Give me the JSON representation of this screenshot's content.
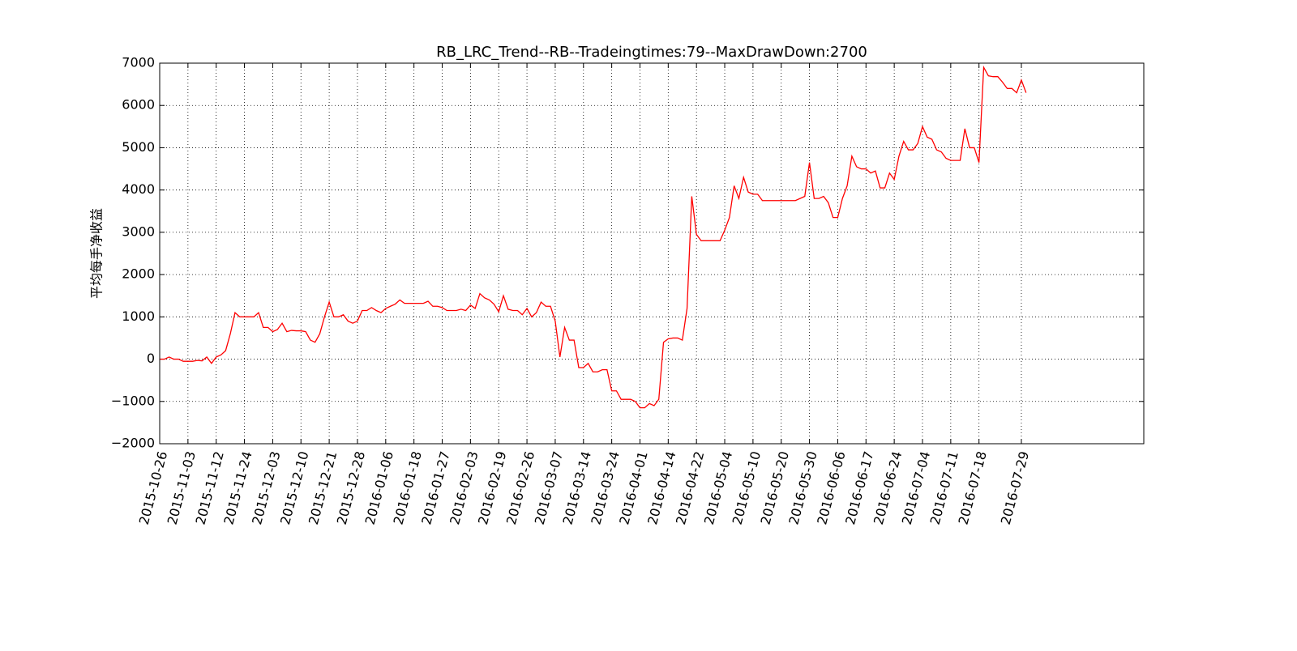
{
  "chart_data": {
    "type": "line",
    "title": "RB_LRC_Trend--RB--Tradeingtimes:79--MaxDrawDown:2700",
    "ylabel": "平均每手净收益",
    "series": [
      {
        "color": "#ff0000",
        "values": [
          0,
          0,
          50,
          0,
          0,
          -50,
          -50,
          -50,
          -30,
          -40,
          50,
          -100,
          50,
          100,
          200,
          600,
          1100,
          1000,
          1000,
          1000,
          1000,
          1100,
          750,
          750,
          650,
          700,
          850,
          650,
          680,
          670,
          670,
          650,
          450,
          400,
          600,
          1000,
          1350,
          1000,
          1000,
          1050,
          900,
          850,
          900,
          1150,
          1150,
          1220,
          1150,
          1100,
          1200,
          1250,
          1300,
          1400,
          1320,
          1320,
          1320,
          1320,
          1320,
          1370,
          1250,
          1250,
          1220,
          1150,
          1150,
          1150,
          1180,
          1150,
          1280,
          1200,
          1550,
          1450,
          1400,
          1300,
          1120,
          1500,
          1180,
          1150,
          1150,
          1050,
          1200,
          1000,
          1100,
          1350,
          1250,
          1250,
          900,
          50,
          750,
          450,
          450,
          -200,
          -200,
          -100,
          -300,
          -300,
          -250,
          -250,
          -750,
          -750,
          -950,
          -950,
          -950,
          -1000,
          -1150,
          -1150,
          -1050,
          -1100,
          -950,
          400,
          480,
          500,
          500,
          450,
          1200,
          3850,
          2950,
          2800,
          2800,
          2800,
          2800,
          2800,
          3050,
          3350,
          4100,
          3800,
          4300,
          3950,
          3900,
          3900,
          3750,
          3750,
          3750,
          3750,
          3750,
          3750,
          3750,
          3750,
          3800,
          3850,
          4650,
          3800,
          3800,
          3850,
          3700,
          3350,
          3350,
          3800,
          4100,
          4800,
          4550,
          4500,
          4500,
          4400,
          4450,
          4050,
          4050,
          4400,
          4250,
          4800,
          5150,
          4950,
          4950,
          5100,
          5500,
          5250,
          5200,
          4950,
          4900,
          4750,
          4700,
          4700,
          4700,
          5450,
          5000,
          5000,
          4650,
          6900,
          6700,
          6680,
          6680,
          6550,
          6400,
          6400,
          6300,
          6600,
          6300
        ]
      }
    ],
    "xlim": [
      0,
      209
    ],
    "xticks": [
      {
        "value": 0,
        "label": "2015-10-26"
      },
      {
        "value": 6,
        "label": "2015-11-03"
      },
      {
        "value": 12,
        "label": "2015-11-12"
      },
      {
        "value": 18,
        "label": "2015-11-24"
      },
      {
        "value": 24,
        "label": "2015-12-03"
      },
      {
        "value": 30,
        "label": "2015-12-10"
      },
      {
        "value": 36,
        "label": "2015-12-21"
      },
      {
        "value": 42,
        "label": "2015-12-28"
      },
      {
        "value": 48,
        "label": "2016-01-06"
      },
      {
        "value": 54,
        "label": "2016-01-18"
      },
      {
        "value": 60,
        "label": "2016-01-27"
      },
      {
        "value": 66,
        "label": "2016-02-03"
      },
      {
        "value": 72,
        "label": "2016-02-19"
      },
      {
        "value": 78,
        "label": "2016-02-26"
      },
      {
        "value": 84,
        "label": "2016-03-07"
      },
      {
        "value": 90,
        "label": "2016-03-14"
      },
      {
        "value": 96,
        "label": "2016-03-24"
      },
      {
        "value": 102,
        "label": "2016-04-01"
      },
      {
        "value": 108,
        "label": "2016-04-14"
      },
      {
        "value": 114,
        "label": "2016-04-22"
      },
      {
        "value": 120,
        "label": "2016-05-04"
      },
      {
        "value": 126,
        "label": "2016-05-10"
      },
      {
        "value": 132,
        "label": "2016-05-20"
      },
      {
        "value": 138,
        "label": "2016-05-30"
      },
      {
        "value": 144,
        "label": "2016-06-06"
      },
      {
        "value": 150,
        "label": "2016-06-17"
      },
      {
        "value": 156,
        "label": "2016-06-24"
      },
      {
        "value": 162,
        "label": "2016-07-04"
      },
      {
        "value": 168,
        "label": "2016-07-11"
      },
      {
        "value": 174,
        "label": "2016-07-18"
      },
      {
        "value": 183,
        "label": "2016-07-29"
      }
    ],
    "ylim": [
      -2000,
      7000
    ],
    "yticks": [
      {
        "value": -2000,
        "label": "−2000"
      },
      {
        "value": -1000,
        "label": "−1000"
      },
      0,
      1000,
      2000,
      3000,
      4000,
      5000,
      6000,
      7000
    ],
    "grid": true
  }
}
